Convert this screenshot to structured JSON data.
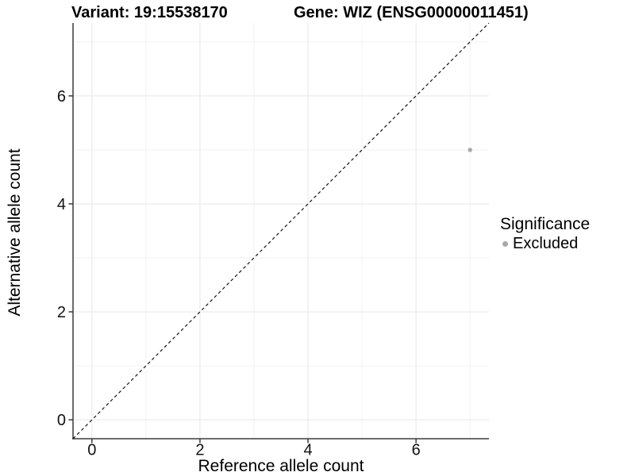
{
  "chart_data": {
    "type": "scatter",
    "title_left": "Variant: 19:15538170",
    "title_right": "Gene: WIZ (ENSG00000011451)",
    "xlabel": "Reference allele count",
    "ylabel": "Alternative allele count",
    "xlim": [
      -0.35,
      7.35
    ],
    "ylim": [
      -0.35,
      7.35
    ],
    "x_major_ticks": [
      0,
      2,
      4,
      6
    ],
    "y_major_ticks": [
      0,
      2,
      4,
      6
    ],
    "x_minor_gridlines": [
      1,
      3,
      5,
      7
    ],
    "y_minor_gridlines": [
      1,
      3,
      5,
      7
    ],
    "grid": true,
    "identity_line": {
      "style": "dashed",
      "equation": "y = x",
      "color": "#000000"
    },
    "series": [
      {
        "name": "Excluded",
        "color": "#a9a9a9",
        "points": [
          {
            "x": 7,
            "y": 5
          }
        ]
      }
    ],
    "legend": {
      "title": "Significance",
      "position": "right",
      "entries": [
        {
          "label": "Excluded",
          "color": "#a9a9a9"
        }
      ]
    },
    "colors": {
      "grid_major": "#e7e7e7",
      "grid_minor": "#f2f2f2",
      "axis_line": "#3a3a3a",
      "tick_mark": "#3a3a3a",
      "tick_label": "#111111"
    }
  }
}
